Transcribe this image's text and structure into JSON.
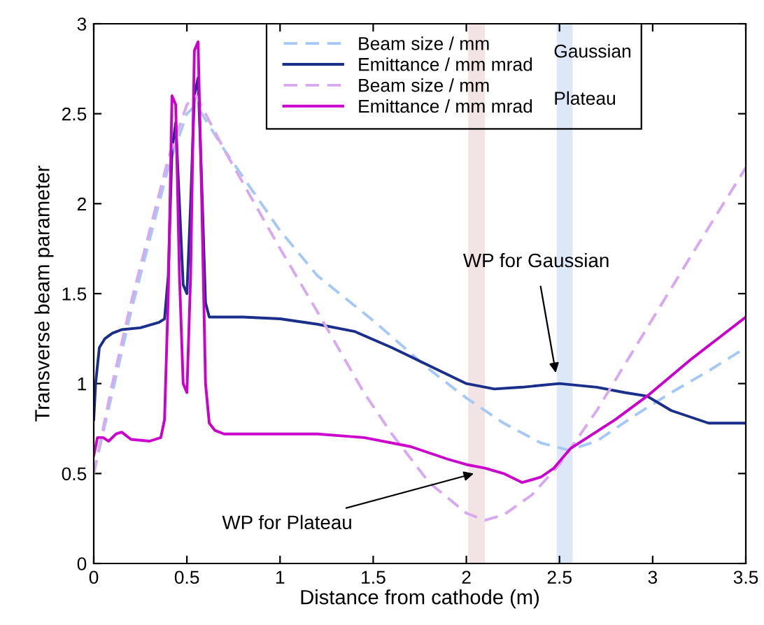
{
  "chart_data": {
    "type": "line",
    "xlabel": "Distance from cathode (m)",
    "ylabel": "Transverse beam parameter",
    "xlim": [
      0,
      3.5
    ],
    "ylim": [
      0,
      3
    ],
    "xticks": [
      0,
      0.5,
      1,
      1.5,
      2,
      2.5,
      3,
      3.5
    ],
    "yticks": [
      0,
      0.5,
      1,
      1.5,
      2,
      2.5,
      3
    ],
    "grid": false,
    "legend": "top right",
    "marker": "none",
    "series": [
      {
        "name": "Beam size / mm",
        "color": "#a6c8f5",
        "line_style": "dashed",
        "x": [
          0,
          0.1,
          0.2,
          0.3,
          0.4,
          0.5,
          0.55,
          0.7,
          1.0,
          1.2,
          1.5,
          1.8,
          2.0,
          2.2,
          2.4,
          2.55,
          2.7,
          2.9,
          3.1,
          3.3,
          3.5
        ],
        "values": [
          0.5,
          0.95,
          1.4,
          1.8,
          2.2,
          2.5,
          2.55,
          2.3,
          1.85,
          1.6,
          1.35,
          1.08,
          0.92,
          0.78,
          0.67,
          0.63,
          0.68,
          0.82,
          0.95,
          1.07,
          1.2
        ]
      },
      {
        "name": "Emittance / mm mrad",
        "color": "#1a2e8c",
        "line_style": "solid",
        "x": [
          0,
          0.01,
          0.03,
          0.06,
          0.1,
          0.15,
          0.25,
          0.35,
          0.38,
          0.4,
          0.42,
          0.44,
          0.46,
          0.48,
          0.5,
          0.52,
          0.54,
          0.56,
          0.58,
          0.6,
          0.62,
          0.65,
          0.8,
          1.0,
          1.2,
          1.4,
          1.6,
          1.8,
          2.0,
          2.15,
          2.3,
          2.5,
          2.7,
          2.85,
          2.97,
          3.1,
          3.3,
          3.5
        ],
        "values": [
          0.8,
          1.0,
          1.2,
          1.25,
          1.28,
          1.3,
          1.31,
          1.34,
          1.36,
          1.6,
          2.3,
          2.45,
          2.0,
          1.55,
          1.5,
          2.0,
          2.6,
          2.7,
          2.1,
          1.45,
          1.37,
          1.37,
          1.37,
          1.36,
          1.33,
          1.29,
          1.2,
          1.1,
          1.0,
          0.97,
          0.98,
          1.0,
          0.98,
          0.95,
          0.93,
          0.85,
          0.78,
          0.78
        ]
      },
      {
        "name": "Beam size / mm",
        "color": "#d8a8f0",
        "line_style": "dashed",
        "x": [
          0,
          0.1,
          0.2,
          0.3,
          0.4,
          0.5,
          0.55,
          0.7,
          1.0,
          1.2,
          1.45,
          1.6,
          1.8,
          2.0,
          2.1,
          2.2,
          2.35,
          2.5,
          2.7,
          3.0,
          3.2,
          3.5
        ],
        "values": [
          0.5,
          1.0,
          1.45,
          1.85,
          2.25,
          2.55,
          2.6,
          2.3,
          1.75,
          1.4,
          0.95,
          0.72,
          0.45,
          0.28,
          0.24,
          0.27,
          0.38,
          0.55,
          0.85,
          1.36,
          1.7,
          2.2
        ]
      },
      {
        "name": "Emittance / mm mrad",
        "color": "#cc00cc",
        "line_style": "solid",
        "x": [
          0,
          0.02,
          0.05,
          0.08,
          0.12,
          0.15,
          0.2,
          0.3,
          0.36,
          0.38,
          0.4,
          0.42,
          0.44,
          0.46,
          0.48,
          0.5,
          0.52,
          0.54,
          0.56,
          0.58,
          0.6,
          0.62,
          0.65,
          0.7,
          1.0,
          1.2,
          1.45,
          1.7,
          1.9,
          2.0,
          2.1,
          2.2,
          2.3,
          2.4,
          2.47,
          2.56,
          2.8,
          2.97,
          3.2,
          3.5
        ],
        "values": [
          0.6,
          0.7,
          0.7,
          0.68,
          0.72,
          0.73,
          0.69,
          0.68,
          0.7,
          0.8,
          1.5,
          2.6,
          2.55,
          1.6,
          1.0,
          0.95,
          1.6,
          2.85,
          2.9,
          2.0,
          1.0,
          0.78,
          0.74,
          0.72,
          0.72,
          0.72,
          0.7,
          0.65,
          0.58,
          0.55,
          0.53,
          0.5,
          0.45,
          0.48,
          0.53,
          0.64,
          0.8,
          0.93,
          1.13,
          1.37
        ]
      }
    ],
    "bands": [
      {
        "axis": "x",
        "from": 2.01,
        "to": 2.1,
        "color": "#f2e4e4"
      },
      {
        "axis": "x",
        "from": 2.485,
        "to": 2.57,
        "color": "#dce8f8"
      }
    ],
    "annotations": [
      {
        "text": "WP for Gaussian",
        "x": 2.48,
        "y": 1.06
      },
      {
        "text": "WP for Plateau",
        "x": 2.04,
        "y": 0.5
      },
      "Gaussian",
      "Plateau"
    ]
  }
}
